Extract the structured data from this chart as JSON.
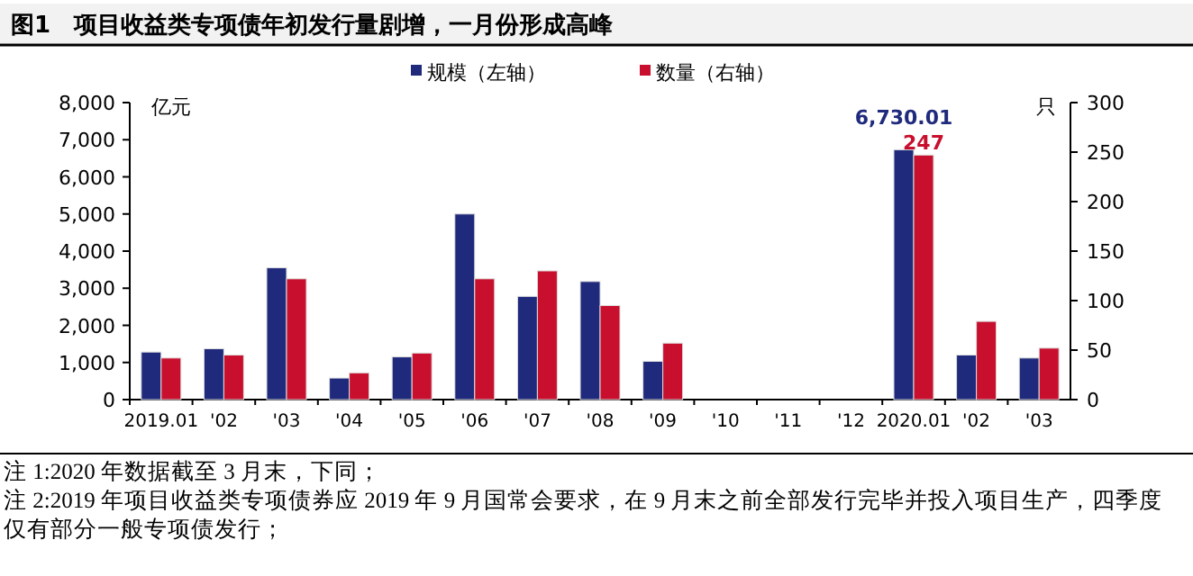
{
  "chart_data": {
    "type": "bar",
    "title": "图1　项目收益类专项债年初发行量剧增，一月份形成高峰",
    "categories": [
      "2019.01",
      "'02",
      "'03",
      "'04",
      "'05",
      "'06",
      "'07",
      "'08",
      "'09",
      "'10",
      "'11",
      "'12",
      "2020.01",
      "'02",
      "'03"
    ],
    "series": [
      {
        "name": "规模（左轴）",
        "color": "#1f2a7c",
        "axis": "y",
        "values": [
          1280,
          1370,
          3550,
          580,
          1150,
          5000,
          2780,
          3180,
          1030,
          null,
          null,
          null,
          6730.01,
          1200,
          1120
        ],
        "value_labels": [
          null,
          null,
          null,
          null,
          null,
          null,
          null,
          null,
          null,
          null,
          null,
          null,
          "6,730.01",
          null,
          null
        ]
      },
      {
        "name": "数量（右轴）",
        "color": "#c8102e",
        "axis": "y2",
        "values": [
          42,
          45,
          122,
          27,
          47,
          122,
          130,
          95,
          57,
          null,
          null,
          null,
          247,
          79,
          52
        ],
        "value_labels": [
          null,
          null,
          null,
          null,
          null,
          null,
          null,
          null,
          null,
          null,
          null,
          null,
          "247",
          null,
          null
        ]
      }
    ],
    "ylabel": "亿元",
    "y2label": "只",
    "ylim": [
      0,
      8000
    ],
    "yticks": [
      0,
      {
        "value": 1000,
        "label": "1,000"
      },
      {
        "value": 2000,
        "label": "2,000"
      },
      {
        "value": 3000,
        "label": "3,000"
      },
      {
        "value": 4000,
        "label": "4,000"
      },
      {
        "value": 5000,
        "label": "5,000"
      },
      {
        "value": 6000,
        "label": "6,000"
      },
      {
        "value": 7000,
        "label": "7,000"
      },
      {
        "value": 8000,
        "label": "8,000"
      }
    ],
    "y2lim": [
      0,
      300
    ],
    "y2ticks": [
      0,
      50,
      100,
      150,
      200,
      250,
      300
    ],
    "legend": "top",
    "annotations": [
      "注 1:2020 年数据截至 3 月末，下同；",
      "注 2:2019 年项目收益类专项债券应 2019 年 9 月国常会要求，在 9 月末之前全部发行完毕并投入项目生产，四季度仅有部分一般专项债发行；"
    ]
  }
}
